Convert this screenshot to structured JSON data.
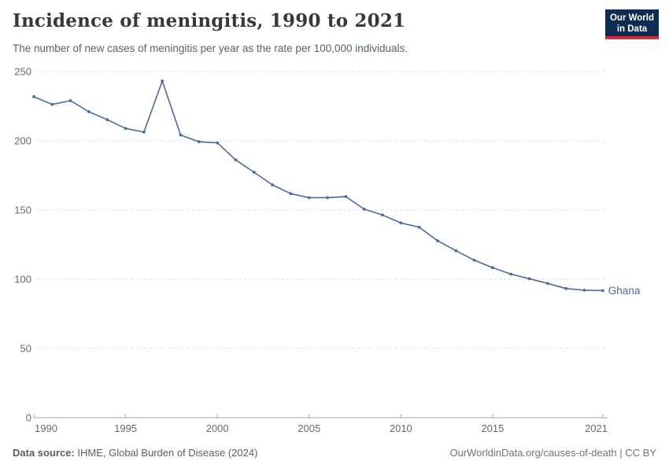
{
  "header": {
    "title": "Incidence of meningitis, 1990 to 2021",
    "subtitle": "The number of new cases of meningitis per year as the rate per 100,000 individuals.",
    "logo_line1": "Our World",
    "logo_line2": "in Data"
  },
  "chart_data": {
    "type": "line",
    "title": "Incidence of meningitis, 1990 to 2021",
    "xlabel": "",
    "ylabel": "",
    "x": [
      1990,
      1991,
      1992,
      1993,
      1994,
      1995,
      1996,
      1997,
      1998,
      1999,
      2000,
      2001,
      2002,
      2003,
      2004,
      2005,
      2006,
      2007,
      2008,
      2009,
      2010,
      2011,
      2012,
      2013,
      2014,
      2015,
      2016,
      2017,
      2018,
      2019,
      2020,
      2021
    ],
    "series": [
      {
        "name": "Ghana",
        "color": "#4c6a9c",
        "values": [
          231.9,
          226.3,
          229.0,
          221.0,
          215.2,
          208.9,
          206.3,
          243.2,
          204.2,
          199.3,
          198.5,
          186.2,
          177.3,
          168.2,
          161.8,
          158.9,
          158.9,
          159.7,
          150.6,
          146.4,
          140.7,
          137.6,
          127.8,
          120.6,
          113.8,
          108.4,
          103.7,
          100.4,
          97.0,
          93.3,
          92.1,
          91.8
        ]
      }
    ],
    "xlim": [
      1990,
      2021
    ],
    "ylim": [
      0,
      250
    ],
    "yticks": [
      0,
      50,
      100,
      150,
      200,
      250
    ],
    "xticks": [
      1990,
      1995,
      2000,
      2005,
      2010,
      2015,
      2021
    ],
    "grid": "horizontal-dashed",
    "legend_position": "end-of-line",
    "end_label": "Ghana"
  },
  "footer": {
    "source_label": "Data source:",
    "source_value": "IHME, Global Burden of Disease (2024)",
    "credit": "OurWorldinData.org/causes-of-death | CC BY"
  },
  "colors": {
    "line": "#4c6a9c",
    "grid": "#dedede",
    "axis": "#a8a8a8",
    "tick_label": "#696969",
    "title": "#383838",
    "subtitle": "#5b6064",
    "logo_bg": "#0f2d52",
    "logo_bar": "#cc2d3a"
  }
}
